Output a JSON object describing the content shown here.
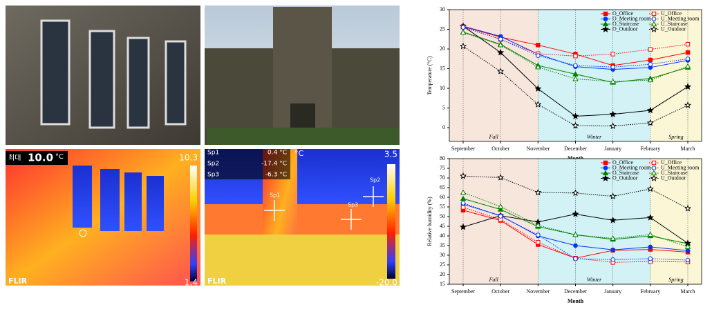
{
  "chart_data": [
    {
      "type": "line",
      "ylabel": "Temperature (°C)",
      "xlabel": "Month",
      "categories": [
        "September",
        "October",
        "November",
        "December",
        "January",
        "February",
        "March"
      ],
      "ylim": [
        -3.5,
        30
      ],
      "yticks": [
        0,
        5,
        10,
        15,
        20,
        25,
        30
      ],
      "legend": "upper right",
      "seasons": [
        {
          "name": "Fall",
          "from": "September",
          "to": "November",
          "color": "#f7e6dc",
          "label_color": "#e05a4a"
        },
        {
          "name": "Winter",
          "from": "November",
          "to": "February",
          "color": "#d2f2f6",
          "label_color": "#3344bb"
        },
        {
          "name": "Spring",
          "from": "February",
          "to": "March",
          "color": "#fbf6d6",
          "label_color": "#c8a020"
        }
      ],
      "series": [
        {
          "name": "O_Office",
          "color": "#ff0000",
          "marker": "square",
          "filled": true,
          "line_style": "solid",
          "values": [
            25.7,
            23,
            21,
            18.7,
            15.8,
            17.2,
            19.1
          ]
        },
        {
          "name": "O_Meeting room",
          "color": "#0033ff",
          "marker": "circle",
          "filled": true,
          "line_style": "solid",
          "values": [
            25.8,
            23.2,
            18.7,
            15.5,
            14.8,
            15.3,
            17.1
          ]
        },
        {
          "name": "O_Staircase",
          "color": "#008000",
          "marker": "triangle",
          "filled": true,
          "line_style": "solid",
          "values": [
            24.3,
            21.2,
            15.8,
            13.6,
            11.5,
            12.5,
            15.3
          ]
        },
        {
          "name": "O_Outdoor",
          "color": "#000000",
          "marker": "star",
          "filled": true,
          "line_style": "solid",
          "values": [
            25.8,
            19.1,
            9.9,
            2.9,
            3.4,
            4.4,
            10.4
          ]
        },
        {
          "name": "U_Office",
          "color": "#ff0000",
          "marker": "square",
          "filled": false,
          "line_style": "dotted",
          "values": [
            25.6,
            22.4,
            18.8,
            18.2,
            18.7,
            19.9,
            21.2
          ]
        },
        {
          "name": "U_Meeting room",
          "color": "#0033ff",
          "marker": "circle",
          "filled": false,
          "line_style": "dotted",
          "values": [
            25.5,
            22.5,
            18.3,
            15.8,
            15.4,
            16.1,
            17.5
          ]
        },
        {
          "name": "U_Staircase",
          "color": "#008000",
          "marker": "triangle",
          "filled": false,
          "line_style": "dotted",
          "values": [
            24.2,
            21,
            15.4,
            12.4,
            11.7,
            12.1,
            15.6
          ]
        },
        {
          "name": "U_Outdoor",
          "color": "#000000",
          "marker": "star",
          "filled": false,
          "line_style": "dotted",
          "values": [
            20.7,
            14.3,
            5.9,
            0.5,
            0.4,
            1.2,
            5.7
          ]
        }
      ]
    },
    {
      "type": "line",
      "ylabel": "Relative humidity (%)",
      "xlabel": "Month",
      "categories": [
        "September",
        "October",
        "November",
        "December",
        "January",
        "February",
        "March"
      ],
      "ylim": [
        15,
        80
      ],
      "yticks": [
        15,
        20,
        25,
        30,
        35,
        40,
        45,
        50,
        55,
        60,
        65,
        70,
        75,
        80
      ],
      "legend": "upper right",
      "seasons": [
        {
          "name": "Fall",
          "from": "September",
          "to": "November",
          "color": "#f7e6dc",
          "label_color": "#e05a4a"
        },
        {
          "name": "Winter",
          "from": "November",
          "to": "February",
          "color": "#d2f2f6",
          "label_color": "#3344bb"
        },
        {
          "name": "Spring",
          "from": "February",
          "to": "March",
          "color": "#fbf6d6",
          "label_color": "#c8a020"
        }
      ],
      "series": [
        {
          "name": "O_Office",
          "color": "#ff0000",
          "marker": "square",
          "filled": true,
          "line_style": "solid",
          "values": [
            53.3,
            48,
            35.5,
            28.5,
            32.5,
            33,
            31.6
          ]
        },
        {
          "name": "O_Meeting room",
          "color": "#0033ff",
          "marker": "circle",
          "filled": true,
          "line_style": "solid",
          "values": [
            56.4,
            50.5,
            40,
            35,
            32.8,
            34.3,
            32.4
          ]
        },
        {
          "name": "O_Staircase",
          "color": "#008000",
          "marker": "triangle",
          "filled": true,
          "line_style": "solid",
          "values": [
            59.3,
            53.7,
            44.8,
            40.6,
            38.2,
            40,
            36
          ]
        },
        {
          "name": "O_Outdoor",
          "color": "#000000",
          "marker": "star",
          "filled": true,
          "line_style": "solid",
          "values": [
            44.6,
            50.5,
            47.2,
            51.3,
            48.1,
            49.5,
            36.2
          ]
        },
        {
          "name": "U_Office",
          "color": "#ff0000",
          "marker": "square",
          "filled": false,
          "line_style": "dotted",
          "values": [
            54.8,
            48.5,
            36.7,
            28.5,
            26.3,
            26.8,
            26.5
          ]
        },
        {
          "name": "U_Meeting room",
          "color": "#0033ff",
          "marker": "circle",
          "filled": false,
          "line_style": "dotted",
          "values": [
            57,
            50.2,
            40.5,
            28.2,
            27.7,
            28.2,
            27.5
          ]
        },
        {
          "name": "U_Staircase",
          "color": "#008000",
          "marker": "triangle",
          "filled": false,
          "line_style": "dotted",
          "values": [
            62.5,
            55.2,
            45.5,
            40.6,
            38.7,
            40.7,
            34.4
          ]
        },
        {
          "name": "U_Outdoor",
          "color": "#000000",
          "marker": "star",
          "filled": false,
          "line_style": "dotted",
          "values": [
            71,
            70.2,
            62.5,
            62.2,
            60.5,
            64.3,
            54.2
          ]
        }
      ]
    }
  ],
  "thermal_images": [
    {
      "max_label": "최대",
      "max_value": "10.0",
      "unit": "°C",
      "scale_top": "10.3",
      "scale_bottom": "1.4",
      "brand": "FLIR"
    },
    {
      "spots": [
        {
          "name": "Sp1",
          "reading": "0.4 °C"
        },
        {
          "name": "Sp2",
          "reading": "-17.4 °C"
        },
        {
          "name": "Sp3",
          "reading": "-6.3 °C"
        }
      ],
      "unit": "°C",
      "scale_top": "3.5",
      "scale_bottom": "-20.0",
      "brand": "FLIR"
    }
  ]
}
